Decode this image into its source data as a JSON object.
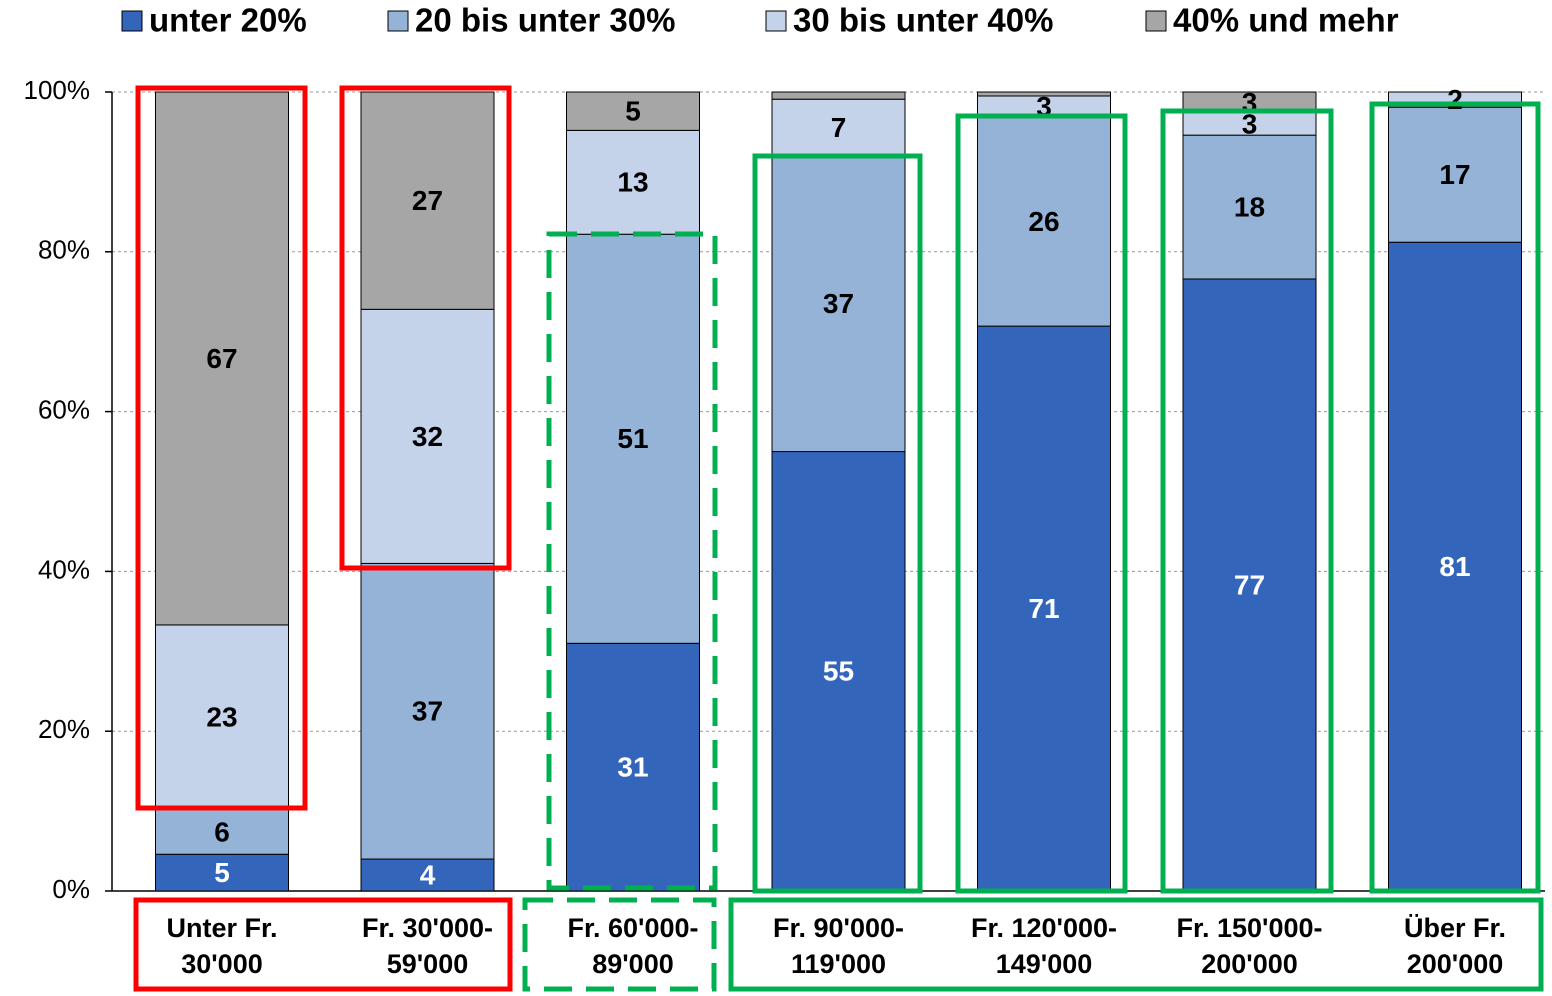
{
  "chart_data": {
    "type": "stacked_bar",
    "categories": [
      [
        "Unter Fr.",
        "30'000"
      ],
      [
        "Fr.  30'000-",
        "59'000"
      ],
      [
        "Fr.  60'000-",
        "89'000"
      ],
      [
        "Fr.  90'000-",
        "119'000"
      ],
      [
        "Fr. 120'000-",
        "149'000"
      ],
      [
        "Fr. 150'000-",
        "200'000"
      ],
      [
        "Über Fr.",
        "200'000"
      ]
    ],
    "series": [
      {
        "name": "unter 20%",
        "color": "#3366bb",
        "label_color": "#ffffff",
        "values": [
          4.6,
          4,
          31,
          55,
          70.7,
          76.6,
          81.2
        ],
        "value_labels": [
          "5",
          "4",
          "31",
          "55",
          "71",
          "77",
          "81"
        ]
      },
      {
        "name": "20 bis unter 30%",
        "color": "#95b3d7",
        "label_color": "#000000",
        "values": [
          5.6,
          37,
          51.2,
          37,
          26.2,
          18,
          16.9
        ],
        "value_labels": [
          "6",
          "37",
          "51",
          "37",
          "26",
          "18",
          "17"
        ]
      },
      {
        "name": "30 bis unter 40%",
        "color": "#c5d3ea",
        "label_color": "#000000",
        "values": [
          23.1,
          31.8,
          13,
          7.1,
          2.6,
          2.8,
          1.9
        ],
        "value_labels": [
          "23",
          "32",
          "13",
          "7",
          "3",
          "3",
          "2"
        ]
      },
      {
        "name": "40% und mehr",
        "color": "#a6a6a6",
        "label_color": "#000000",
        "values": [
          66.7,
          27.2,
          4.8,
          0.9,
          0.5,
          2.6,
          0
        ],
        "value_labels": [
          "67",
          "27",
          "5",
          null,
          null,
          "3",
          null
        ]
      }
    ],
    "ylim": [
      0,
      100
    ],
    "yticks": [
      {
        "value": 0,
        "label": "0%"
      },
      {
        "value": 20,
        "label": "20%"
      },
      {
        "value": 40,
        "label": "40%"
      },
      {
        "value": 60,
        "label": "60%"
      },
      {
        "value": 80,
        "label": "80%"
      },
      {
        "value": 100,
        "label": "100%"
      }
    ],
    "grid": true
  }
}
